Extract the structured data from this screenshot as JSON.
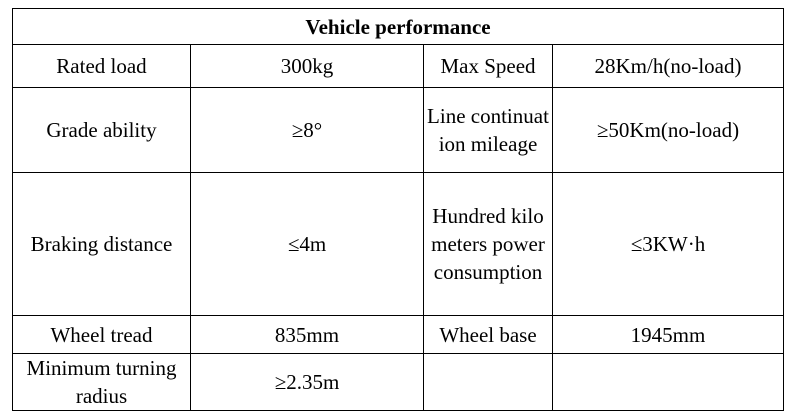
{
  "table": {
    "title": "Vehicle performance",
    "rows": [
      [
        "Rated load",
        "300kg",
        "Max Speed",
        "28Km/h(no-load)"
      ],
      [
        "Grade ability",
        "≥8°",
        "Line continuation mileage",
        "≥50Km(no-load)"
      ],
      [
        "Braking distance",
        "≤4m",
        "Hundred kilometers power consumption",
        "≤3KW·h"
      ],
      [
        "Wheel tread",
        "835mm",
        "Wheel base",
        "1945mm"
      ],
      [
        "Minimum turning radius",
        "≥2.35m"
      ]
    ]
  }
}
